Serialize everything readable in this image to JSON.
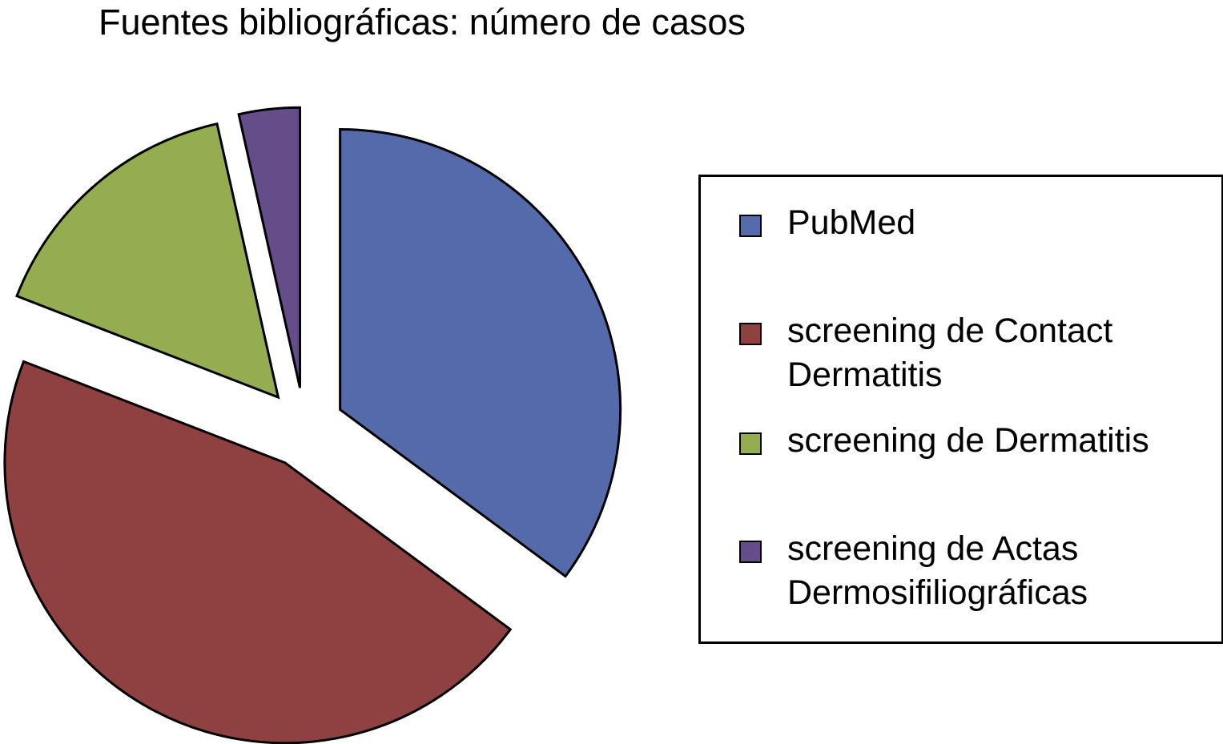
{
  "chart_data": {
    "type": "pie",
    "title": "Fuentes bibliográficas: número de casos",
    "categories": [
      "PubMed",
      "screening de Contact Dermatitis",
      "screening de Dermatitis",
      "screening de Actas Dermosifiliográficas"
    ],
    "values": [
      35.1,
      45.7,
      15.6,
      3.5
    ],
    "colors": [
      "#546aab",
      "#8f4040",
      "#93ad50",
      "#644d89"
    ],
    "exploded": true,
    "legend": "right"
  }
}
